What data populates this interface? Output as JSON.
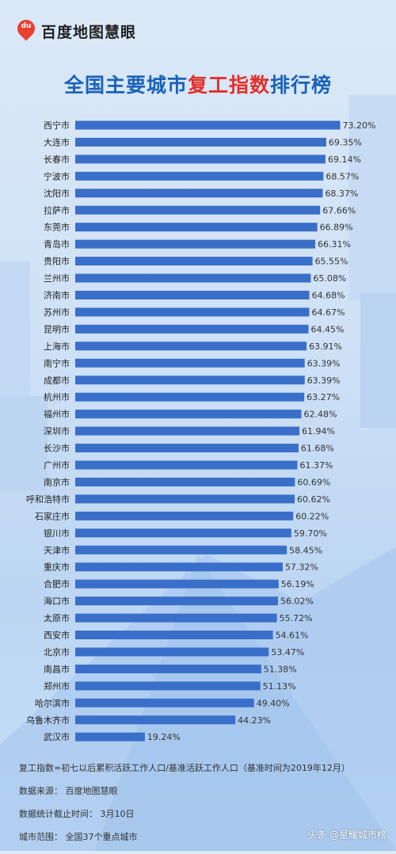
{
  "header": {
    "logo_text": "du",
    "brand": "百度地图慧眼"
  },
  "title": {
    "part1": "全国主要城市",
    "highlight": "复工指数",
    "part2": "排行榜"
  },
  "chart_data": {
    "type": "bar",
    "orientation": "horizontal",
    "unit": "%",
    "bar_color": "#3a6fc9",
    "label_color": "#333333",
    "categories": [
      "西宁市",
      "大连市",
      "长春市",
      "宁波市",
      "沈阳市",
      "拉萨市",
      "东莞市",
      "青岛市",
      "贵阳市",
      "兰州市",
      "济南市",
      "苏州市",
      "昆明市",
      "上海市",
      "南宁市",
      "成都市",
      "杭州市",
      "福州市",
      "深圳市",
      "长沙市",
      "广州市",
      "南京市",
      "呼和浩特市",
      "石家庄市",
      "银川市",
      "天津市",
      "重庆市",
      "合肥市",
      "海口市",
      "太原市",
      "西安市",
      "北京市",
      "南昌市",
      "郑州市",
      "哈尔滨市",
      "乌鲁木齐市",
      "武汉市"
    ],
    "values": [
      73.2,
      69.35,
      69.14,
      68.57,
      68.37,
      67.66,
      66.89,
      66.31,
      65.55,
      65.08,
      64.68,
      64.67,
      64.45,
      63.91,
      63.39,
      63.39,
      63.27,
      62.48,
      61.94,
      61.68,
      61.37,
      60.69,
      60.62,
      60.22,
      59.7,
      58.45,
      57.32,
      56.19,
      56.02,
      55.72,
      54.61,
      53.47,
      51.38,
      51.13,
      49.4,
      44.23,
      19.24
    ],
    "value_labels": [
      "73.20%",
      "69.35%",
      "69.14%",
      "68.57%",
      "68.37%",
      "67.66%",
      "66.89%",
      "66.31%",
      "65.55%",
      "65.08%",
      "64.68%",
      "64.67%",
      "64.45%",
      "63.91%",
      "63.39%",
      "63.39%",
      "63.27%",
      "62.48%",
      "61.94%",
      "61.68%",
      "61.37%",
      "60.69%",
      "60.62%",
      "60.22%",
      "59.70%",
      "58.45%",
      "57.32%",
      "56.19%",
      "56.02%",
      "55.72%",
      "54.61%",
      "53.47%",
      "51.38%",
      "51.13%",
      "49.40%",
      "44.23%",
      "19.24%"
    ]
  },
  "footer": {
    "formula": "复工指数=初七以后累积活跃工作人口/基准活跃工作人口（基准时间为2019年12月）",
    "source": "数据来源：  百度地图慧眼",
    "cutoff": "数据统计截止时间：  3月10日",
    "scope": "城市范围：  全国37个重点城市"
  },
  "watermark": "头条 @星耀城市榜"
}
